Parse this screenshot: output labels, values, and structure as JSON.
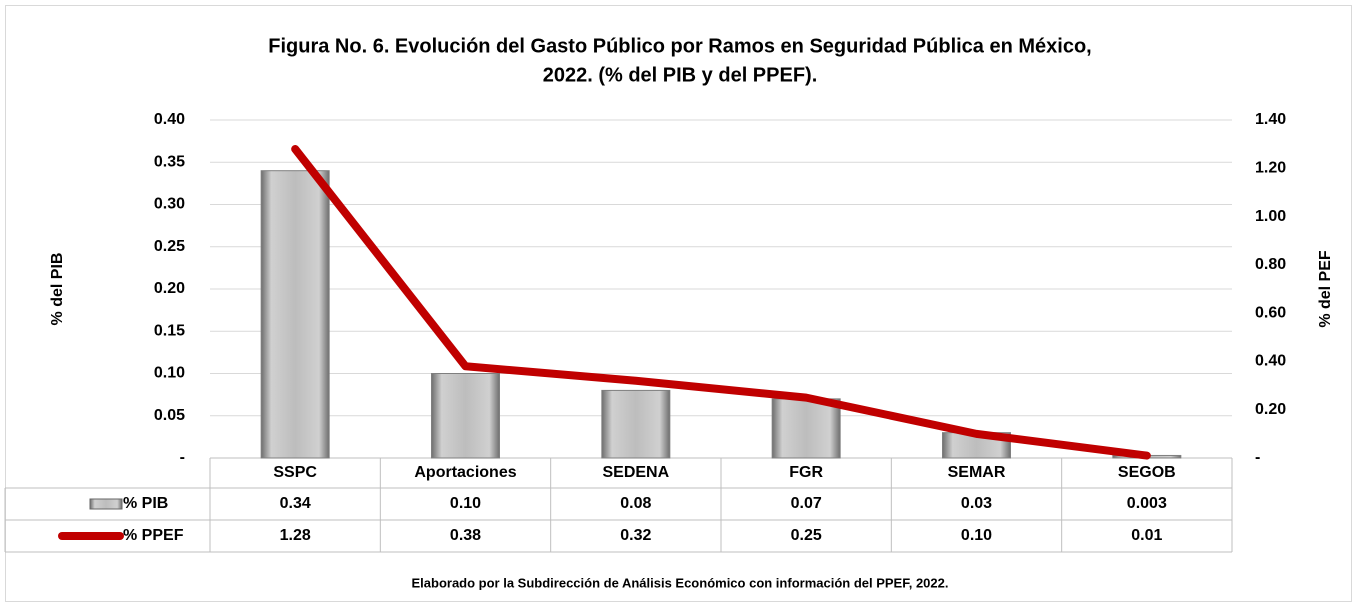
{
  "chart_data": {
    "type": "bar_line_table",
    "title": [
      "Figura No. 6. Evolución del Gasto Público por Ramos en Seguridad Pública en México,",
      "2022. (% del PIB y del PPEF)."
    ],
    "ylabel": "% del PIB",
    "y2label": "% del PEF",
    "note": "Elaborado por la Subdirección de Análisis Económico con información del PPEF, 2022.",
    "categories": [
      "SSPC",
      "Aportaciones",
      "SEDENA",
      "FGR",
      "SEMAR",
      "SEGOB"
    ],
    "series": [
      {
        "name": "% PIB",
        "type": "bar",
        "color": "#a6a6a6",
        "values": [
          0.34,
          0.1,
          0.08,
          0.07,
          0.03,
          0.003
        ],
        "value_labels": [
          "0.34",
          "0.10",
          "0.08",
          "0.07",
          "0.03",
          "0.003"
        ]
      },
      {
        "name": "% PPEF",
        "type": "line",
        "axis": "y2",
        "color": "#c00000",
        "values": [
          1.28,
          0.38,
          0.32,
          0.25,
          0.1,
          0.01
        ],
        "value_labels": [
          "1.28",
          "0.38",
          "0.32",
          "0.25",
          "0.10",
          "0.01"
        ]
      }
    ],
    "ylim": [
      0,
      0.4
    ],
    "yticks": [
      {
        "value": 0,
        "label": "-"
      },
      0.05,
      {
        "value": 0.1,
        "label": "0.10"
      },
      0.15,
      {
        "value": 0.2,
        "label": "0.20"
      },
      0.25,
      {
        "value": 0.3,
        "label": "0.30"
      },
      0.35,
      {
        "value": 0.4,
        "label": "0.40"
      }
    ],
    "y2lim": [
      0,
      1.4
    ],
    "y2ticks": [
      {
        "value": 0,
        "label": "-"
      },
      {
        "value": 0.2,
        "label": "0.20"
      },
      {
        "value": 0.4,
        "label": "0.40"
      },
      {
        "value": 0.6,
        "label": "0.60"
      },
      {
        "value": 0.8,
        "label": "0.80"
      },
      {
        "value": 1,
        "label": "1.00"
      },
      {
        "value": 1.2,
        "label": "1.20"
      },
      {
        "value": 1.4,
        "label": "1.40"
      }
    ],
    "grid": true
  }
}
